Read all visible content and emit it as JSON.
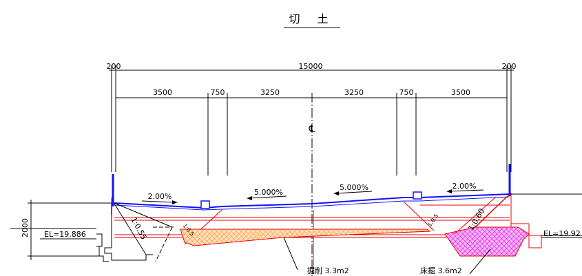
{
  "title": "切 土",
  "dimensions": {
    "overall": "15000",
    "side_left": "200",
    "side_right": "200",
    "segments": [
      "3500",
      "750",
      "3250",
      "3250",
      "750",
      "3500"
    ],
    "height": "2000"
  },
  "centerline_symbol": "℄",
  "slopes": {
    "left_shoulder": "2.00%",
    "left_lane": "5.000%",
    "right_lane": "5.000%",
    "right_shoulder": "2.00%"
  },
  "slope_ratios": {
    "left": "1:0.55",
    "left_inner": "1:0.5",
    "right_inner": "1:0.5",
    "right": "1:0.60"
  },
  "elevations": {
    "left": "EL=19.886",
    "right": "EL=19.92"
  },
  "labels": {
    "excavation": "掘削 3.3m2",
    "floor_dig": "床掘 3.6m2"
  },
  "colors": {
    "red": "#e60000",
    "blue": "#1010ff",
    "hatch_orange": "#ff8c1a",
    "hatch_magenta": "#e600e6"
  }
}
